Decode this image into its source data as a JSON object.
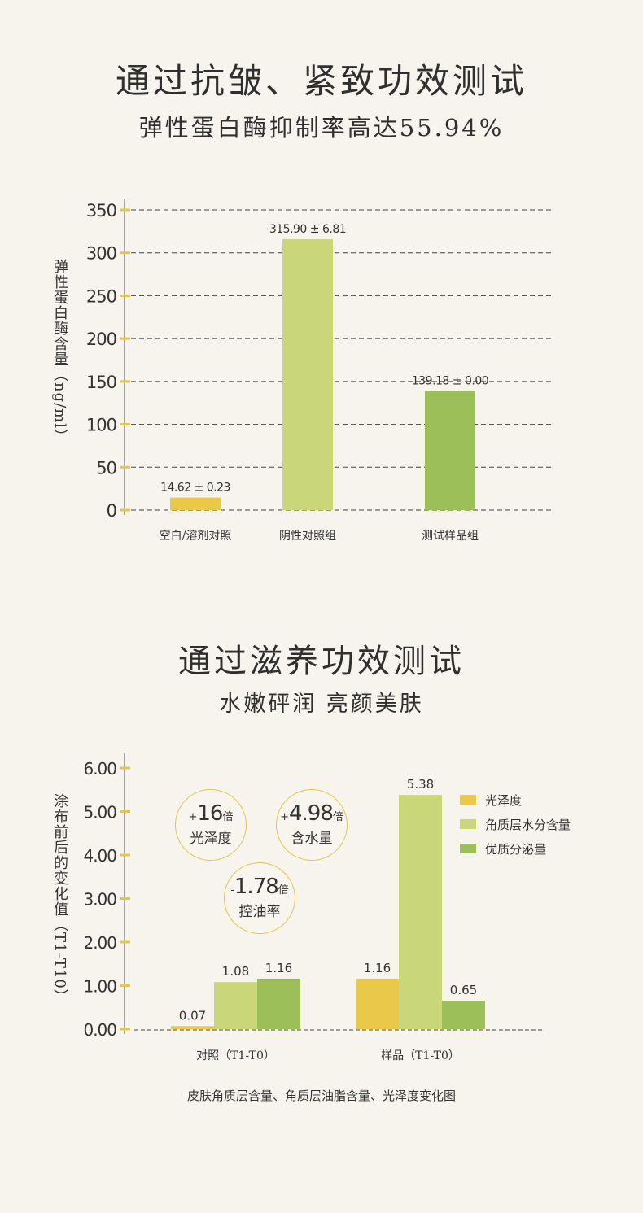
{
  "section1": {
    "title": "通过抗皱、紧致功效测试",
    "subtitle": "弹性蛋白酶抑制率高达55.94%"
  },
  "section2": {
    "title": "通过滋养功效测试",
    "subtitle": "水嫩砰润 亮颜美肤",
    "badges": [
      {
        "sign": "+",
        "value": "16",
        "unit": "倍",
        "label": "光泽度"
      },
      {
        "sign": "+",
        "value": "4.98",
        "unit": "倍",
        "label": "含水量"
      },
      {
        "sign": "-",
        "value": "1.78",
        "unit": "倍",
        "label": "控油率"
      }
    ],
    "caption": "皮肤角质层含量、角质层油脂含量、光泽度变化图"
  },
  "chart_data": [
    {
      "type": "bar",
      "ylabel": "弹性蛋白酶含量（ng/ml）",
      "ylim": [
        0,
        350
      ],
      "yticks": [
        "0",
        "50",
        "100",
        "150",
        "200",
        "250",
        "300",
        "350"
      ],
      "grid": true,
      "categories": [
        "空白/溶剂对照",
        "阴性对照组",
        "测试样品组"
      ],
      "values": [
        14.62,
        315.9,
        139.18
      ],
      "data_labels": [
        "14.62 ± 0.23",
        "315.90 ± 6.81",
        "139.18 ± 0.00"
      ],
      "colors": [
        "#e9c84a",
        "#c9d67a",
        "#9cbf5a"
      ]
    },
    {
      "type": "bar",
      "ylabel": "涂布前后的变化值（T1-T10）",
      "ylim": [
        0,
        6
      ],
      "yticks": [
        "0.00",
        "1.00",
        "2.00",
        "3.00",
        "4.00",
        "5.00",
        "6.00"
      ],
      "grid": false,
      "legend_position": "right",
      "categories": [
        "对照（T1-T0）",
        "样品（T1-T0）"
      ],
      "series": [
        {
          "name": "光泽度",
          "values": [
            0.07,
            1.16
          ],
          "color": "#e9c84a",
          "labels": [
            "0.07",
            "1.16"
          ]
        },
        {
          "name": "角质层水分含量",
          "values": [
            1.08,
            5.38
          ],
          "color": "#c9d67a",
          "labels": [
            "1.08",
            "5.38"
          ]
        },
        {
          "name": "优质分泌量",
          "values": [
            1.16,
            0.65
          ],
          "color": "#9cbf5a",
          "labels": [
            "1.16",
            "0.65"
          ]
        }
      ]
    }
  ]
}
